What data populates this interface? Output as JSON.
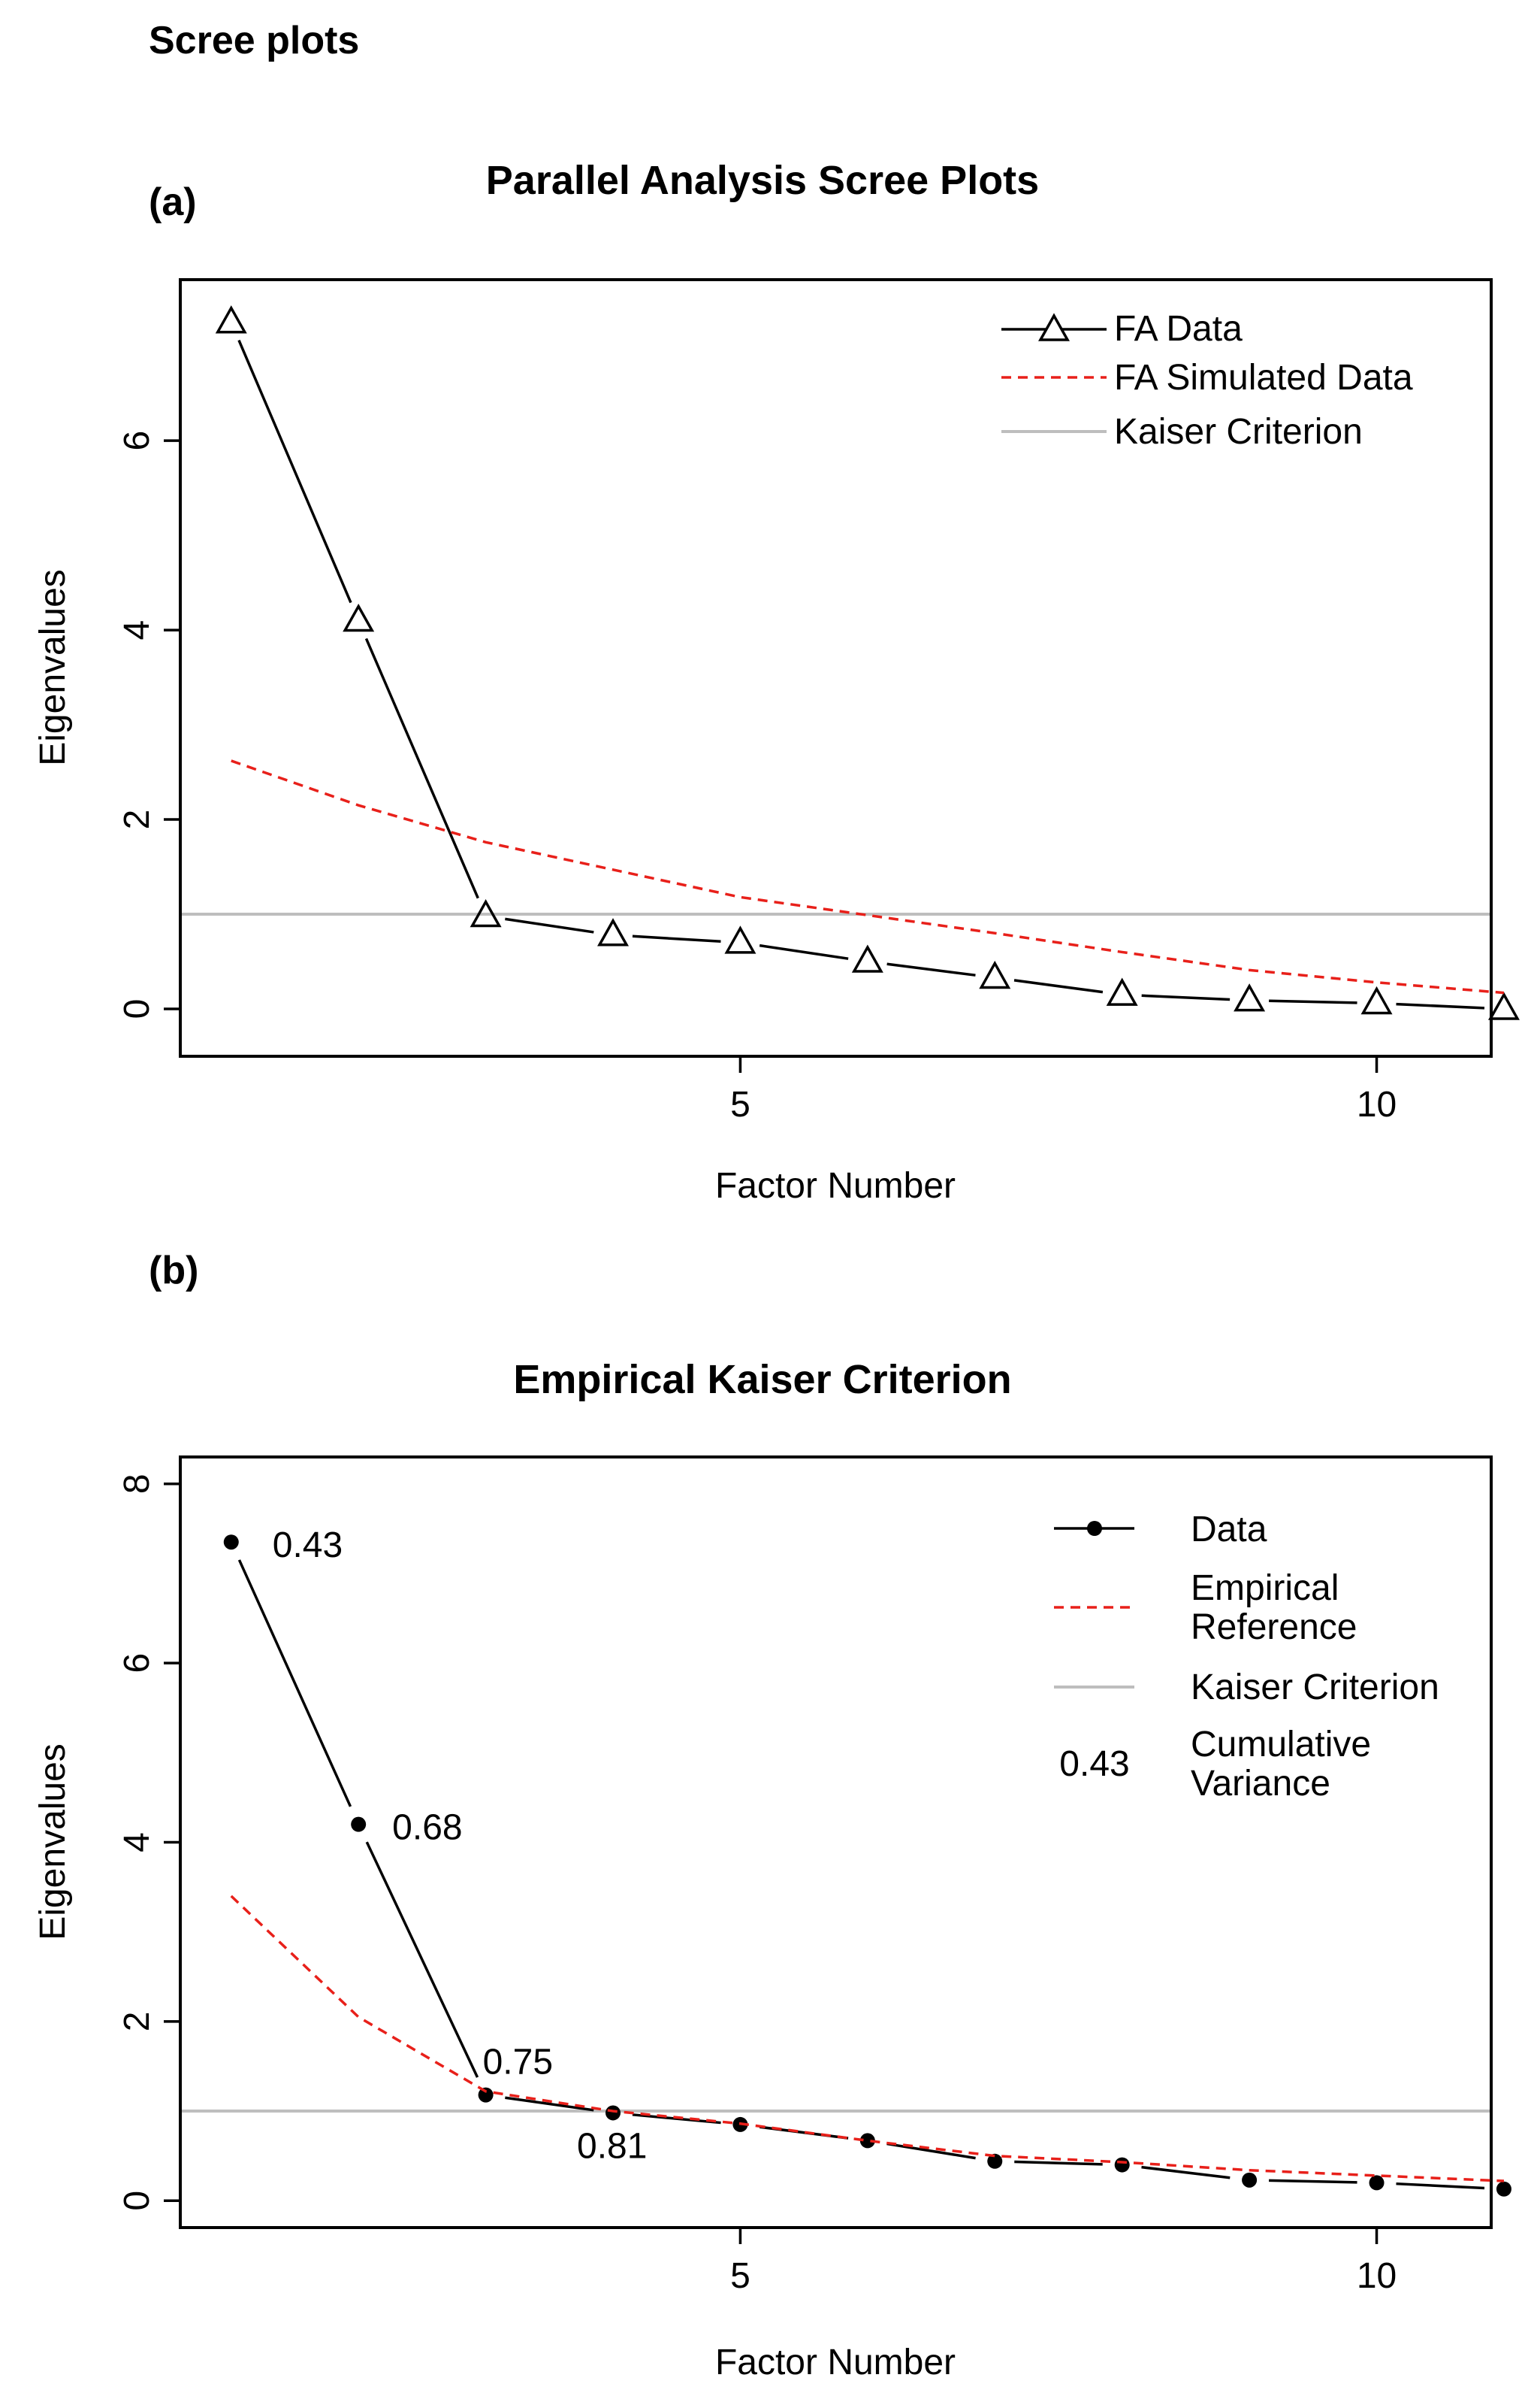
{
  "page_title": "Scree plots",
  "chart_data": [
    {
      "type": "line",
      "panel_label": "(a)",
      "title": "Parallel Analysis Scree Plots",
      "xlabel": "Factor Number",
      "ylabel": "Eigenvalues",
      "xlim": [
        0.6,
        10.9
      ],
      "ylim": [
        -0.5,
        7.7
      ],
      "xticks": [
        5,
        10
      ],
      "yticks": [
        0,
        2,
        4,
        6
      ],
      "x": [
        1,
        2,
        3,
        4,
        5,
        6,
        7,
        8,
        9,
        10,
        11
      ],
      "series": [
        {
          "name": "FA  Data",
          "style": "black-line-triangles",
          "color": "#000000",
          "x": [
            1,
            2,
            3,
            4,
            5,
            6,
            7,
            8,
            9,
            10,
            11
          ],
          "values": [
            7.25,
            4.1,
            0.98,
            0.78,
            0.7,
            0.5,
            0.33,
            0.15,
            0.09,
            0.06,
            0.0
          ]
        },
        {
          "name": "FA  Simulated Data",
          "style": "red-dashed",
          "color": "#e8201a",
          "x": [
            1,
            2,
            3,
            4,
            5,
            6,
            7,
            8,
            9,
            10,
            11
          ],
          "values": [
            2.62,
            2.15,
            1.76,
            1.47,
            1.18,
            0.99,
            0.8,
            0.6,
            0.41,
            0.28,
            0.17
          ]
        },
        {
          "name": "Kaiser Criterion",
          "style": "gray-hline",
          "color": "#bebebe",
          "y": 1.0
        }
      ],
      "legend": {
        "position": "top-right",
        "entries": [
          "FA  Data",
          "FA  Simulated Data",
          "Kaiser Criterion"
        ]
      }
    },
    {
      "type": "line",
      "panel_label": "(b)",
      "title": "Empirical Kaiser Criterion",
      "xlabel": "Factor Number",
      "ylabel": "Eigenvalues",
      "xlim": [
        0.6,
        10.9
      ],
      "ylim": [
        -0.3,
        8.3
      ],
      "xticks": [
        5,
        10
      ],
      "yticks": [
        0,
        2,
        4,
        6,
        8
      ],
      "series": [
        {
          "name": "Data",
          "style": "black-line-dots",
          "color": "#000000",
          "x": [
            1,
            2,
            3,
            4,
            5,
            6,
            7,
            8,
            9,
            10,
            11
          ],
          "values": [
            7.35,
            4.2,
            1.18,
            0.98,
            0.85,
            0.67,
            0.44,
            0.4,
            0.23,
            0.2,
            0.13
          ]
        },
        {
          "name": "Empirical Reference",
          "style": "red-dashed",
          "color": "#e8201a",
          "x": [
            1,
            2,
            3,
            4,
            5,
            6,
            7,
            8,
            9,
            10,
            11
          ],
          "values": [
            3.4,
            2.05,
            1.22,
            1.0,
            0.86,
            0.67,
            0.5,
            0.43,
            0.34,
            0.28,
            0.22
          ]
        },
        {
          "name": "Kaiser Criterion",
          "style": "gray-hline",
          "color": "#bebebe",
          "y": 1.0
        }
      ],
      "annotations": [
        {
          "x": 1,
          "y": 7.35,
          "text": "0.43"
        },
        {
          "x": 2,
          "y": 4.2,
          "text": "0.68"
        },
        {
          "x": 3,
          "y": 1.18,
          "text": "0.75"
        },
        {
          "x": 4,
          "y": 0.98,
          "text": "0.81"
        }
      ],
      "legend": {
        "position": "top-right",
        "entries": [
          {
            "symbol": "line-dot",
            "text": [
              "Data"
            ]
          },
          {
            "symbol": "red-dashed",
            "text": [
              "Empirical",
              "Reference"
            ]
          },
          {
            "symbol": "gray-line",
            "text": [
              "Kaiser Criterion"
            ]
          },
          {
            "symbol_text": "0.43",
            "text": [
              "Cumulative",
              "Variance"
            ]
          }
        ]
      }
    }
  ]
}
